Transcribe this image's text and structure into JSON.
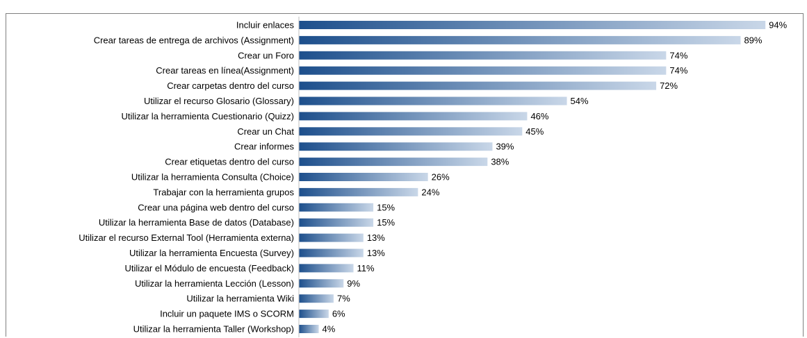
{
  "chart_data": {
    "type": "bar",
    "orientation": "horizontal",
    "title": "",
    "xlabel": "",
    "ylabel": "",
    "xlim": [
      0,
      100
    ],
    "grid": false,
    "legend": "none",
    "bar_gradient": [
      "#1d4f8c",
      "#c9d7e8"
    ],
    "categories": [
      "Incluir enlaces",
      "Crear tareas de entrega de archivos (Assignment)",
      "Crear un Foro",
      "Crear tareas en línea(Assignment)",
      "Crear carpetas dentro del curso",
      "Utilizar el recurso Glosario (Glossary)",
      "Utilizar la herramienta Cuestionario (Quizz)",
      "Crear un Chat",
      "Crear informes",
      "Crear etiquetas dentro del curso",
      "Utilizar la herramienta Consulta (Choice)",
      "Trabajar con la herramienta grupos",
      "Crear una página web dentro del curso",
      "Utilizar la herramienta Base de datos (Database)",
      "Utilizar el recurso External Tool (Herramienta externa)",
      "Utilizar la herramienta Encuesta (Survey)",
      "Utilizar el Módulo de encuesta (Feedback)",
      "Utilizar la herramienta Lección (Lesson)",
      "Utilizar la herramienta Wiki",
      "Incluir un paquete IMS o SCORM",
      "Utilizar la herramienta Taller (Workshop)"
    ],
    "values": [
      94,
      89,
      74,
      74,
      72,
      54,
      46,
      45,
      39,
      38,
      26,
      24,
      15,
      15,
      13,
      13,
      11,
      9,
      7,
      6,
      4
    ],
    "value_labels": [
      "94%",
      "89%",
      "74%",
      "74%",
      "72%",
      "54%",
      "46%",
      "45%",
      "39%",
      "38%",
      "26%",
      "24%",
      "15%",
      "15%",
      "13%",
      "13%",
      "11%",
      "9%",
      "7%",
      "6%",
      "4%"
    ]
  }
}
